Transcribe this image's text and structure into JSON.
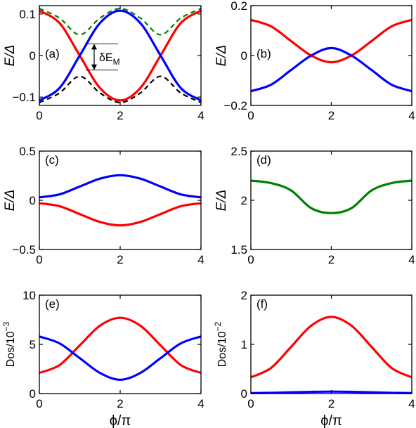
{
  "figure": {
    "xlabel": "ϕ/π"
  },
  "chart_data": [
    {
      "type": "line",
      "panel_label": "(a)",
      "ylabel": "E/Δ",
      "xlabel": "",
      "xlim": [
        0,
        4
      ],
      "ylim": [
        -0.12,
        0.12
      ],
      "xticks": [
        0,
        2,
        4
      ],
      "xticklabels": [
        "0",
        "2",
        "4"
      ],
      "yticks": [
        -0.1,
        0,
        0.1
      ],
      "yticklabels": [
        "−0.1",
        "0",
        "0.1"
      ],
      "annotation": "δE",
      "annotation_sub": "M",
      "series": [
        {
          "color": "#ff0000",
          "style": "solid",
          "x": [
            0,
            0.5,
            1,
            1.5,
            2,
            2.5,
            3,
            3.5,
            4
          ],
          "y": [
            0.108,
            0.078,
            0.0,
            -0.078,
            -0.108,
            -0.078,
            0.0,
            0.078,
            0.108
          ]
        },
        {
          "color": "#0000ff",
          "style": "solid",
          "x": [
            0,
            0.5,
            1,
            1.5,
            2,
            2.5,
            3,
            3.5,
            4
          ],
          "y": [
            -0.108,
            -0.078,
            0.0,
            0.078,
            0.108,
            0.078,
            0.0,
            -0.078,
            -0.108
          ]
        },
        {
          "color": "#008000",
          "style": "dashed",
          "x": [
            0,
            0.5,
            1,
            1.5,
            2,
            2.5,
            3,
            3.5,
            4
          ],
          "y": [
            0.113,
            0.09,
            0.05,
            0.09,
            0.113,
            0.09,
            0.05,
            0.09,
            0.113
          ]
        },
        {
          "color": "#000000",
          "style": "dashed",
          "x": [
            0,
            0.5,
            1,
            1.5,
            2,
            2.5,
            3,
            3.5,
            4
          ],
          "y": [
            -0.113,
            -0.09,
            -0.05,
            -0.09,
            -0.113,
            -0.09,
            -0.05,
            -0.09,
            -0.113
          ]
        }
      ]
    },
    {
      "type": "line",
      "panel_label": "(b)",
      "ylabel": "E/Δ",
      "xlabel": "",
      "xlim": [
        0,
        4
      ],
      "ylim": [
        -0.2,
        0.2
      ],
      "xticks": [
        0,
        2,
        4
      ],
      "xticklabels": [
        "0",
        "2",
        "4"
      ],
      "yticks": [
        -0.2,
        0,
        0.2
      ],
      "yticklabels": [
        "−0.2",
        "0",
        "0.2"
      ],
      "series": [
        {
          "color": "#ff0000",
          "style": "solid",
          "x": [
            0,
            0.5,
            1,
            1.5,
            2,
            2.5,
            3,
            3.5,
            4
          ],
          "y": [
            0.143,
            0.117,
            0.058,
            0.0,
            -0.027,
            0.0,
            0.058,
            0.117,
            0.143
          ]
        },
        {
          "color": "#0000ff",
          "style": "solid",
          "x": [
            0,
            0.5,
            1,
            1.5,
            2,
            2.5,
            3,
            3.5,
            4
          ],
          "y": [
            -0.143,
            -0.117,
            -0.058,
            0.0,
            0.03,
            0.0,
            -0.058,
            -0.117,
            -0.143
          ]
        }
      ]
    },
    {
      "type": "line",
      "panel_label": "(c)",
      "ylabel": "E/Δ",
      "xlabel": "",
      "xlim": [
        0,
        4
      ],
      "ylim": [
        -0.5,
        0.5
      ],
      "xticks": [
        0,
        2,
        4
      ],
      "xticklabels": [
        "0",
        "2",
        "4"
      ],
      "yticks": [
        -0.5,
        0,
        0.5
      ],
      "yticklabels": [
        "−0.5",
        "0",
        "0.5"
      ],
      "series": [
        {
          "color": "#0000ff",
          "style": "solid",
          "x": [
            0,
            0.5,
            1,
            1.5,
            2,
            2.5,
            3,
            3.5,
            4
          ],
          "y": [
            0.03,
            0.06,
            0.14,
            0.22,
            0.255,
            0.22,
            0.14,
            0.06,
            0.03
          ]
        },
        {
          "color": "#ff0000",
          "style": "solid",
          "x": [
            0,
            0.5,
            1,
            1.5,
            2,
            2.5,
            3,
            3.5,
            4
          ],
          "y": [
            -0.03,
            -0.06,
            -0.14,
            -0.22,
            -0.255,
            -0.22,
            -0.14,
            -0.06,
            -0.03
          ]
        }
      ]
    },
    {
      "type": "line",
      "panel_label": "(d)",
      "ylabel": "E/Δ",
      "xlabel": "",
      "xlim": [
        0,
        4
      ],
      "ylim": [
        1.5,
        2.5
      ],
      "xticks": [
        0,
        2,
        4
      ],
      "xticklabels": [
        "0",
        "2",
        "4"
      ],
      "yticks": [
        1.5,
        2,
        2.5
      ],
      "yticklabels": [
        "1.5",
        "2",
        "2.5"
      ],
      "series": [
        {
          "color": "#008000",
          "style": "solid",
          "x": [
            0,
            0.5,
            1,
            1.5,
            2,
            2.5,
            3,
            3.5,
            4
          ],
          "y": [
            2.2,
            2.175,
            2.1,
            1.92,
            1.87,
            1.92,
            2.1,
            2.175,
            2.2
          ]
        }
      ]
    },
    {
      "type": "line",
      "panel_label": "(e)",
      "ylabel": "Dos/10",
      "ylabel_sup": "−3",
      "xlabel": "ϕ/π",
      "xlim": [
        0,
        4
      ],
      "ylim": [
        0,
        10
      ],
      "xticks": [
        0,
        2,
        4
      ],
      "xticklabels": [
        "0",
        "2",
        "4"
      ],
      "yticks": [
        0,
        5,
        10
      ],
      "yticklabels": [
        "0",
        "5",
        "10"
      ],
      "series": [
        {
          "color": "#ff0000",
          "style": "solid",
          "x": [
            0,
            0.5,
            1,
            1.5,
            2,
            2.5,
            3,
            3.5,
            4
          ],
          "y": [
            2.1,
            2.9,
            4.9,
            6.9,
            7.7,
            6.9,
            4.9,
            2.9,
            2.1
          ]
        },
        {
          "color": "#0000ff",
          "style": "solid",
          "x": [
            0,
            0.5,
            1,
            1.5,
            2,
            2.5,
            3,
            3.5,
            4
          ],
          "y": [
            5.8,
            5.1,
            3.6,
            2.1,
            1.4,
            2.1,
            3.6,
            5.1,
            5.8
          ]
        }
      ]
    },
    {
      "type": "line",
      "panel_label": "(f)",
      "ylabel": "Dos/10",
      "ylabel_sup": "−2",
      "xlabel": "ϕ/π",
      "xlim": [
        0,
        4
      ],
      "ylim": [
        0,
        2
      ],
      "xticks": [
        0,
        2,
        4
      ],
      "xticklabels": [
        "0",
        "2",
        "4"
      ],
      "yticks": [
        0,
        1,
        2
      ],
      "yticklabels": [
        "0",
        "1",
        "2"
      ],
      "series": [
        {
          "color": "#ff0000",
          "style": "solid",
          "x": [
            0,
            0.5,
            1,
            1.5,
            2,
            2.5,
            3,
            3.5,
            4
          ],
          "y": [
            0.33,
            0.52,
            0.95,
            1.38,
            1.56,
            1.38,
            0.95,
            0.52,
            0.33
          ]
        },
        {
          "color": "#0000ff",
          "style": "solid",
          "x": [
            0,
            0.5,
            1,
            1.5,
            2,
            2.5,
            3,
            3.5,
            4
          ],
          "y": [
            0.01,
            0.015,
            0.025,
            0.035,
            0.04,
            0.035,
            0.025,
            0.015,
            0.01
          ]
        }
      ]
    }
  ]
}
